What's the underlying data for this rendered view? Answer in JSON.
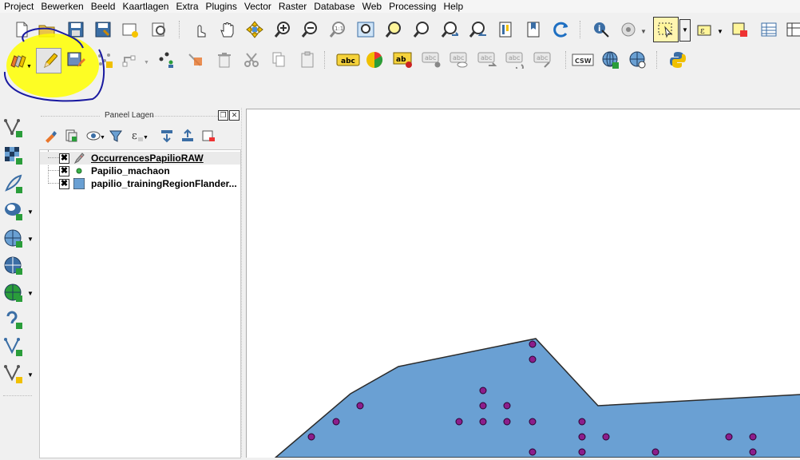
{
  "menubar": {
    "items": [
      "Project",
      "Bewerken",
      "Beeld",
      "Kaartlagen",
      "Extra",
      "Plugins",
      "Vector",
      "Raster",
      "Database",
      "Web",
      "Processing",
      "Help"
    ]
  },
  "toolbar2": {
    "csw_label": "CSW",
    "abc_label": "abc",
    "ab_label": "ab"
  },
  "layers_panel": {
    "title": "Paneel Lagen",
    "float_glyph": "❐",
    "close_glyph": "✕",
    "layers": [
      {
        "name": "OccurrencesPapilioRAW",
        "checked": true,
        "symbol": "pencil-edit-icon"
      },
      {
        "name": "Papilio_machaon",
        "checked": true,
        "symbol": "green-point-icon"
      },
      {
        "name": "papilio_trainingRegionFlander...",
        "checked": true,
        "symbol": "blue-polygon-icon"
      }
    ],
    "check_glyph": "✖"
  },
  "map": {
    "polygon_fill": "#6aa0d3",
    "polygon_stroke": "#2b2b2b",
    "point_fill": "#8b1e8b",
    "point_stroke": "#2b0030"
  },
  "colors": {
    "highlight": "#ffff00",
    "annotation_ink": "#1a1aa0"
  }
}
